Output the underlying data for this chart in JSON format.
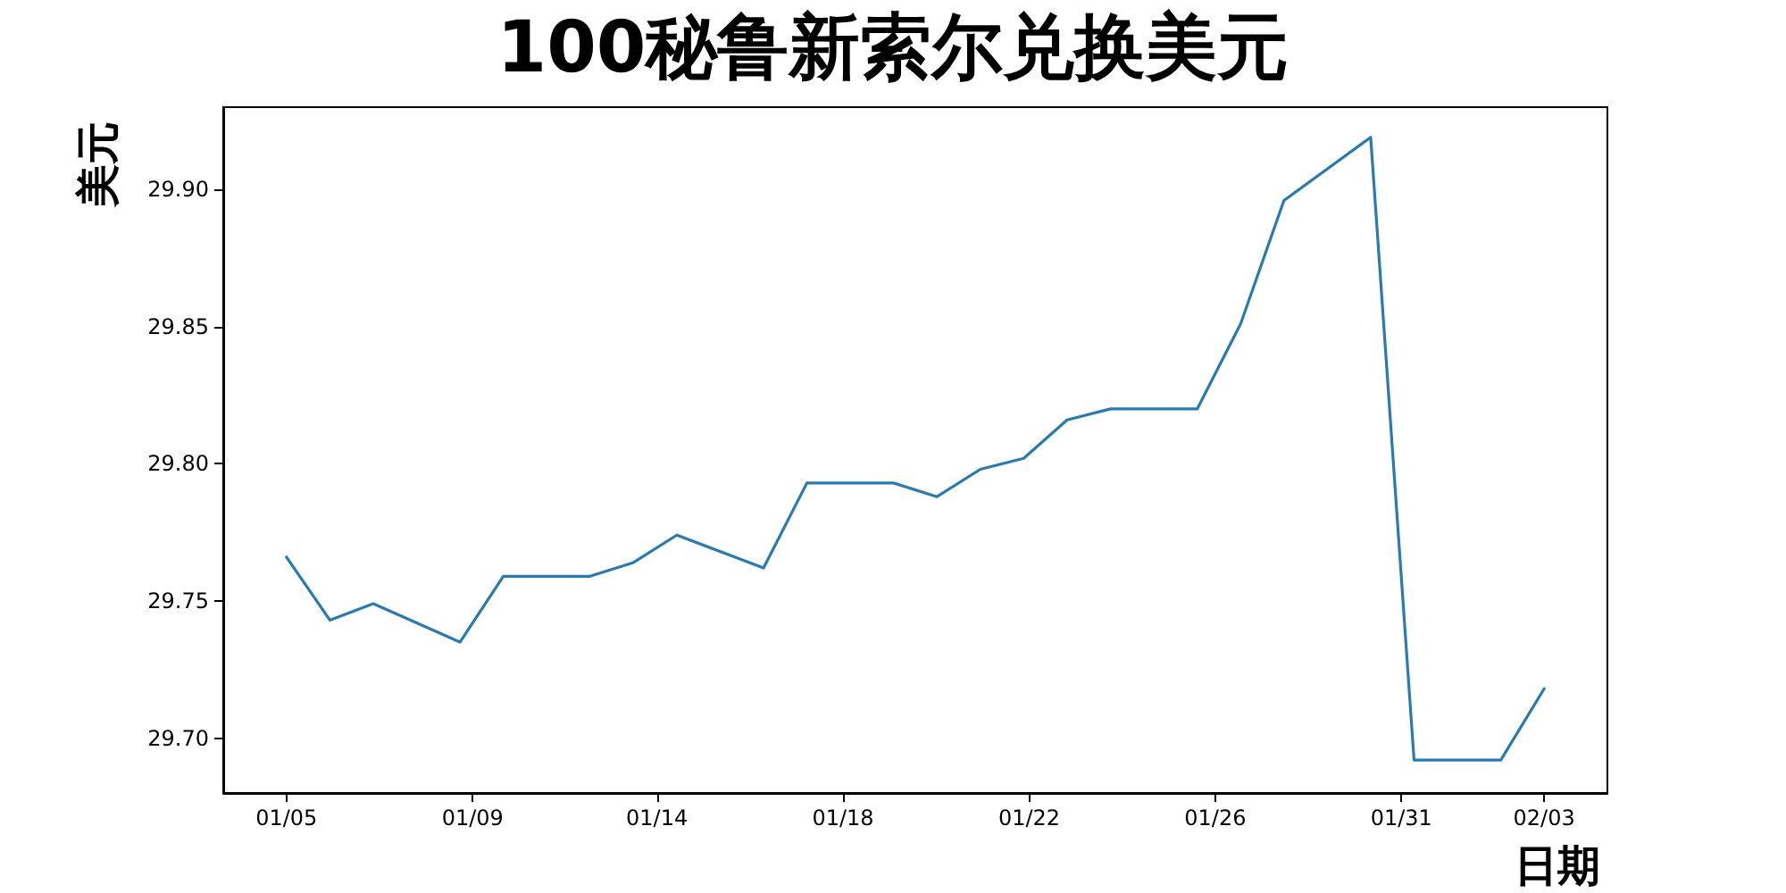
{
  "chart_data": {
    "type": "line",
    "title": "100秘鲁新索尔兑换美元",
    "xlabel": "日期",
    "ylabel": "美元",
    "x": [
      "--01-05",
      "--01-06",
      "--01-07",
      "--01-09",
      "--01-10",
      "--01-12",
      "--01-13",
      "--01-14",
      "--01-16",
      "--01-17",
      "--01-19",
      "--01-20",
      "--01-21",
      "--01-22",
      "--01-23",
      "--01-24",
      "--01-26",
      "--01-27",
      "--01-28",
      "--01-30",
      "--01-31",
      "--02-02",
      "--02-03"
    ],
    "series": [
      {
        "color": "#2a7ab0",
        "values": [
          29.766,
          29.743,
          29.749,
          29.735,
          29.759,
          29.759,
          29.764,
          29.774,
          29.762,
          29.793,
          29.793,
          29.788,
          29.798,
          29.802,
          29.816,
          29.82,
          29.82,
          29.851,
          29.896,
          29.919,
          29.692,
          29.692,
          29.718
        ]
      }
    ],
    "xlim": [
      "--01-03T13:00",
      "--02-04T11:00"
    ],
    "xticks": [
      {
        "value": "--01-05",
        "label": "01/05"
      },
      {
        "value": "--01-09T07:00",
        "label": "01/09"
      },
      {
        "value": "--01-13T13:00",
        "label": "01/14"
      },
      {
        "value": "--01-17T20:00",
        "label": "01/18"
      },
      {
        "value": "--01-22T03:00",
        "label": "01/22"
      },
      {
        "value": "--01-26T10:00",
        "label": "01/26"
      },
      {
        "value": "--01-30T17:00",
        "label": "01/31"
      },
      {
        "value": "--02-03",
        "label": "02/03"
      }
    ],
    "ylim": [
      29.68,
      29.93
    ],
    "yticks": [
      {
        "value": 29.7,
        "label": "29.70"
      },
      29.75,
      {
        "value": 29.8,
        "label": "29.80"
      },
      29.85,
      {
        "value": 29.9,
        "label": "29.90"
      }
    ],
    "grid": false,
    "marker": "none",
    "line_style": "solid"
  }
}
